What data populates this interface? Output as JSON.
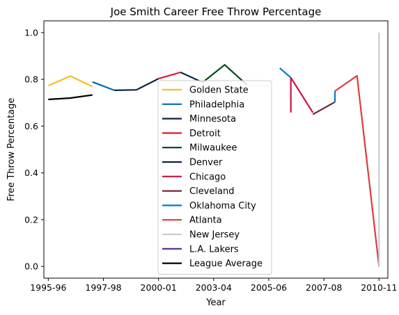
{
  "chart_data": {
    "type": "line",
    "title": "Joe Smith  Career Free Throw Percentage",
    "xlabel": "Year",
    "ylabel": "Free Throw Percentage",
    "xlim": [
      -0.2,
      15.4
    ],
    "ylim": [
      -0.05,
      1.05
    ],
    "x_ticks": [
      {
        "pos": 0,
        "label": "1995-96"
      },
      {
        "pos": 2.5,
        "label": "1997-98"
      },
      {
        "pos": 5,
        "label": "2000-01"
      },
      {
        "pos": 7.5,
        "label": "2003-04"
      },
      {
        "pos": 10,
        "label": "2005-06"
      },
      {
        "pos": 12.5,
        "label": "2007-08"
      },
      {
        "pos": 15,
        "label": "2010-11"
      }
    ],
    "y_ticks": [
      0.0,
      0.2,
      0.4,
      0.6,
      0.8,
      1.0
    ],
    "y_tick_labels": [
      "0.0",
      "0.2",
      "0.4",
      "0.6",
      "0.8",
      "1.0"
    ],
    "legend_position": "center",
    "series": [
      {
        "name": "Golden State",
        "color": "#fdb927",
        "points": [
          [
            0,
            0.773
          ],
          [
            1,
            0.814
          ],
          [
            2,
            0.769
          ]
        ]
      },
      {
        "name": "Philadelphia",
        "color": "#006bb6",
        "points": [
          [
            2,
            0.789
          ],
          [
            3,
            0.753
          ]
        ]
      },
      {
        "name": "Minnesota",
        "color": "#0c2340",
        "points": [
          [
            3,
            0.753
          ],
          [
            4,
            0.755
          ],
          [
            5,
            0.803
          ]
        ]
      },
      {
        "name": "Detroit",
        "color": "#e31837",
        "points": [
          [
            5,
            0.803
          ],
          [
            6,
            0.83
          ]
        ]
      },
      {
        "name": "Milwaukee",
        "color": "#00471b",
        "points": [
          [
            7,
            0.787
          ],
          [
            8,
            0.862
          ],
          [
            9,
            0.777
          ]
        ]
      },
      {
        "name": "Denver",
        "color": "#0e2240",
        "points": [
          [
            6,
            0.83
          ],
          [
            7,
            0.787
          ]
        ]
      },
      {
        "name": "Chicago",
        "color": "#ce1141",
        "points": [
          [
            11,
            0.807
          ],
          [
            12,
            0.658
          ]
        ]
      },
      {
        "name": "Cleveland",
        "color": "#6f263d",
        "points": [
          [
            12,
            0.65
          ],
          [
            13,
            0.703
          ]
        ]
      },
      {
        "name": "Oklahoma City",
        "color": "#007ac1",
        "points": [
          [
            10.5,
            0.848
          ],
          [
            11,
            0.807
          ]
        ]
      },
      {
        "name": "Atlanta",
        "color": "#e03a3e",
        "points": [
          [
            13,
            0.75
          ],
          [
            14,
            0.815
          ],
          [
            15,
            0.0
          ]
        ]
      },
      {
        "name": "New Jersey",
        "color": "#c4ced4",
        "points": [
          [
            9,
            0.771
          ],
          [
            10,
            0.774
          ]
        ]
      },
      {
        "name": "L.A. Lakers",
        "color": "#552583",
        "points": []
      },
      {
        "name": "League Average",
        "color": "#000000",
        "points": [
          [
            0,
            0.714
          ],
          [
            1,
            0.72
          ],
          [
            2,
            0.733
          ]
        ]
      }
    ]
  }
}
